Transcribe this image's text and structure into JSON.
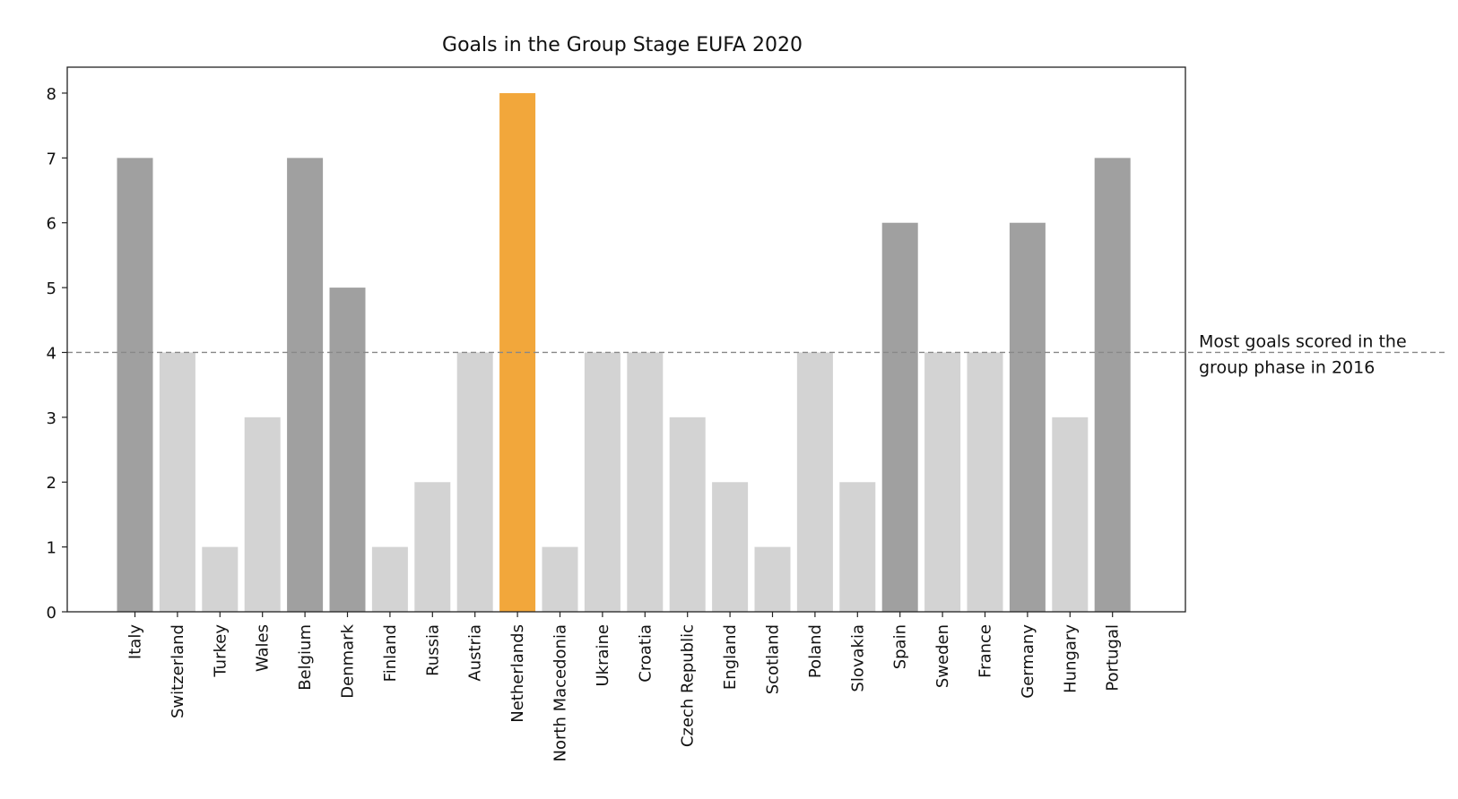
{
  "chart_data": {
    "type": "bar",
    "title": "Goals in the Group Stage EUFA 2020",
    "xlabel": "",
    "ylabel": "",
    "categories": [
      "Italy",
      "Switzerland",
      "Turkey",
      "Wales",
      "Belgium",
      "Denmark",
      "Finland",
      "Russia",
      "Austria",
      "Netherlands",
      "North Macedonia",
      "Ukraine",
      "Croatia",
      "Czech Republic",
      "England",
      "Scotland",
      "Poland",
      "Slovakia",
      "Spain",
      "Sweden",
      "France",
      "Germany",
      "Hungary",
      "Portugal"
    ],
    "values": [
      7,
      4,
      1,
      3,
      7,
      5,
      1,
      2,
      4,
      8,
      1,
      4,
      4,
      3,
      2,
      1,
      4,
      2,
      6,
      4,
      4,
      6,
      3,
      7
    ],
    "ylim": [
      0,
      8.4
    ],
    "yticks": [
      0,
      1,
      2,
      3,
      4,
      5,
      6,
      7,
      8
    ],
    "grid": false,
    "reference_line": {
      "value": 4,
      "style": "dashed",
      "label_lines": [
        "Most goals scored in the",
        "group phase in 2016"
      ]
    },
    "colors": {
      "above_reference": "#a0a0a0",
      "at_or_below_reference": "#d3d3d3",
      "highlight": "#f2a73b",
      "reference_line": "#888888"
    },
    "highlight_category": "Netherlands"
  }
}
